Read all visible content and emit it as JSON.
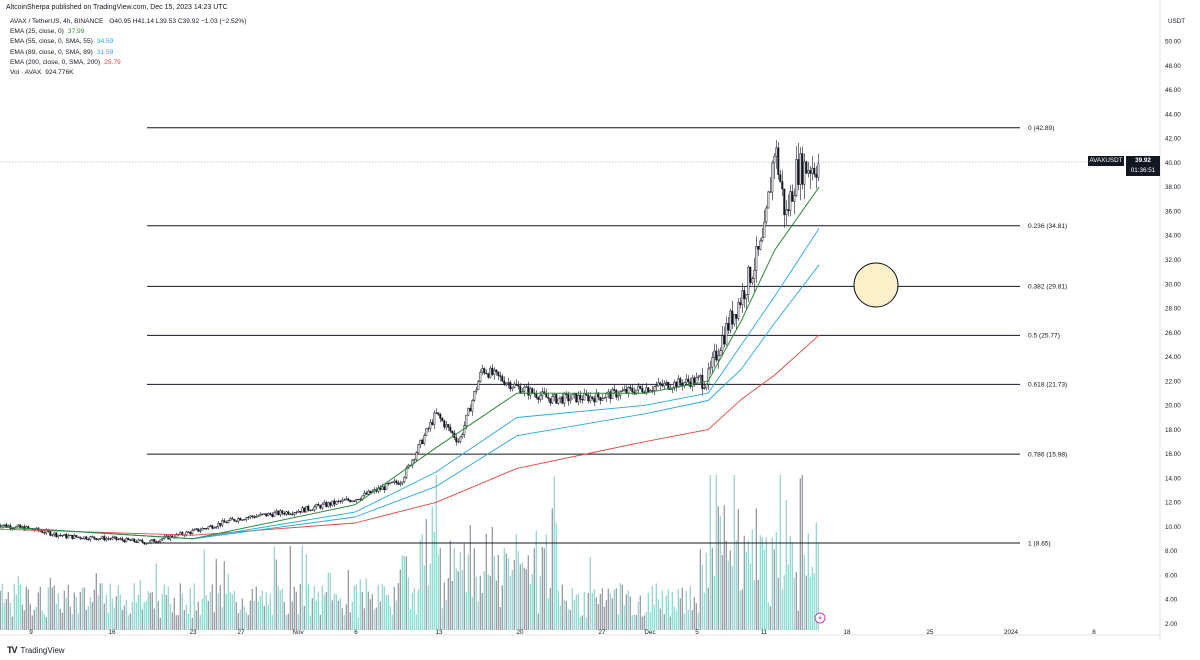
{
  "header": {
    "publisher": "AltcoinSherpa published on TradingView.com, Dec 15, 2023 14:23 UTC"
  },
  "legend": {
    "symbol": "AVAX / TetherUS, 4h, BINANCE",
    "ohlc": "O40.95 H41.14 L39.53 C39.92 −1.03 (−2.52%)",
    "indicators": [
      {
        "label": "EMA (25, close, 0)",
        "value": "37.99",
        "color": "#2e8b3a"
      },
      {
        "label": "EMA (55, close, 0, SMA, 55)",
        "value": "34.59",
        "color": "#26a9e0"
      },
      {
        "label": "EMA (89, close, 0, SMA, 89)",
        "value": "31.59",
        "color": "#26a9e0"
      },
      {
        "label": "EMA (200, close, 0, SMA, 200)",
        "value": "25.79",
        "color": "#e8453c"
      },
      {
        "label": "Vol · AVAX",
        "value": "924.776K",
        "color": "#131722"
      }
    ]
  },
  "axis": {
    "unit": "USDT",
    "y_ticks": [
      "50.00",
      "48.00",
      "46.00",
      "44.00",
      "42.00",
      "40.00",
      "38.00",
      "36.00",
      "34.00",
      "32.00",
      "30.00",
      "28.00",
      "26.00",
      "24.00",
      "22.00",
      "20.00",
      "18.00",
      "16.00",
      "14.00",
      "12.00",
      "10.00",
      "8.00",
      "6.00",
      "4.00",
      "2.00"
    ],
    "x_ticks": [
      "9",
      "16",
      "23",
      "27",
      "Nov",
      "6",
      "13",
      "20",
      "27",
      "Dec",
      "5",
      "11",
      "18",
      "25",
      "2024",
      "8"
    ]
  },
  "current_price": {
    "symbol": "AVAXUSDT",
    "price": "39.92",
    "countdown": "01:36:51"
  },
  "footer": {
    "brand": "TradingView"
  },
  "chart_data": {
    "type": "candlestick",
    "ylim": [
      2,
      50
    ],
    "fib_levels": [
      {
        "label": "0 (42.89)",
        "value": 42.89
      },
      {
        "label": "0.236 (34.81)",
        "value": 34.81
      },
      {
        "label": "0.382 (29.81)",
        "value": 29.81
      },
      {
        "label": "0.5 (25.77)",
        "value": 25.77
      },
      {
        "label": "0.618 (21.73)",
        "value": 21.73
      },
      {
        "label": "0.786 (15.98)",
        "value": 15.98
      },
      {
        "label": "1 (8.65)",
        "value": 8.65
      }
    ],
    "price_path": [
      {
        "date": "Oct 6",
        "close": 10.2
      },
      {
        "date": "Oct 9",
        "close": 9.8
      },
      {
        "date": "Oct 12",
        "close": 9.2
      },
      {
        "date": "Oct 16",
        "close": 9.0
      },
      {
        "date": "Oct 19",
        "close": 8.7
      },
      {
        "date": "Oct 23",
        "close": 9.6
      },
      {
        "date": "Oct 27",
        "close": 10.7
      },
      {
        "date": "Nov 1",
        "close": 11.3
      },
      {
        "date": "Nov 6",
        "close": 12.3
      },
      {
        "date": "Nov 10",
        "close": 13.8
      },
      {
        "date": "Nov 13",
        "close": 19.3
      },
      {
        "date": "Nov 15",
        "close": 17.0
      },
      {
        "date": "Nov 17",
        "close": 23.0
      },
      {
        "date": "Nov 20",
        "close": 21.5
      },
      {
        "date": "Nov 23",
        "close": 20.5
      },
      {
        "date": "Nov 27",
        "close": 20.7
      },
      {
        "date": "Dec 1",
        "close": 21.4
      },
      {
        "date": "Dec 5",
        "close": 22.2
      },
      {
        "date": "Dec 6",
        "close": 25.0
      },
      {
        "date": "Dec 8",
        "close": 29.0
      },
      {
        "date": "Dec 10",
        "close": 33.5
      },
      {
        "date": "Dec 11",
        "close": 41.5
      },
      {
        "date": "Dec 12",
        "close": 35.5
      },
      {
        "date": "Dec 13",
        "close": 39.5
      },
      {
        "date": "Dec 15",
        "close": 39.92
      }
    ],
    "ema_25": [
      {
        "date": "Oct 6",
        "value": 10.0
      },
      {
        "date": "Oct 23",
        "value": 9.0
      },
      {
        "date": "Nov 6",
        "value": 11.8
      },
      {
        "date": "Nov 13",
        "value": 16.5
      },
      {
        "date": "Nov 20",
        "value": 21.0
      },
      {
        "date": "Dec 1",
        "value": 21.0
      },
      {
        "date": "Dec 5",
        "value": 22.0
      },
      {
        "date": "Dec 8",
        "value": 27.0
      },
      {
        "date": "Dec 11",
        "value": 32.8
      },
      {
        "date": "Dec 15",
        "value": 37.99
      }
    ],
    "ema_55": [
      {
        "date": "Oct 6",
        "value": 10.0
      },
      {
        "date": "Oct 23",
        "value": 9.0
      },
      {
        "date": "Nov 6",
        "value": 11.2
      },
      {
        "date": "Nov 13",
        "value": 14.5
      },
      {
        "date": "Nov 20",
        "value": 19.0
      },
      {
        "date": "Dec 1",
        "value": 20.0
      },
      {
        "date": "Dec 5",
        "value": 21.0
      },
      {
        "date": "Dec 8",
        "value": 25.0
      },
      {
        "date": "Dec 11",
        "value": 29.0
      },
      {
        "date": "Dec 15",
        "value": 34.59
      }
    ],
    "ema_89": [
      {
        "date": "Oct 6",
        "value": 10.0
      },
      {
        "date": "Oct 23",
        "value": 9.0
      },
      {
        "date": "Nov 6",
        "value": 10.8
      },
      {
        "date": "Nov 13",
        "value": 13.3
      },
      {
        "date": "Nov 20",
        "value": 17.5
      },
      {
        "date": "Dec 1",
        "value": 19.3
      },
      {
        "date": "Dec 5",
        "value": 20.4
      },
      {
        "date": "Dec 8",
        "value": 23.0
      },
      {
        "date": "Dec 11",
        "value": 26.8
      },
      {
        "date": "Dec 15",
        "value": 31.59
      }
    ],
    "ema_200": [
      {
        "date": "Oct 6",
        "value": 9.8
      },
      {
        "date": "Oct 23",
        "value": 9.3
      },
      {
        "date": "Nov 6",
        "value": 10.3
      },
      {
        "date": "Nov 13",
        "value": 12.0
      },
      {
        "date": "Nov 20",
        "value": 14.8
      },
      {
        "date": "Dec 1",
        "value": 17.0
      },
      {
        "date": "Dec 5",
        "value": 18.0
      },
      {
        "date": "Dec 8",
        "value": 20.5
      },
      {
        "date": "Dec 11",
        "value": 22.5
      },
      {
        "date": "Dec 15",
        "value": 25.79
      }
    ],
    "colors": {
      "ema_25": "#2e8b3a",
      "ema_55": "#26a9e0",
      "ema_89": "#26a9e0",
      "ema_200": "#e8453c",
      "fib": "#131722",
      "volume": "#7fc8c4",
      "circle_fill": "#fbf0c8"
    },
    "annotation": {
      "type": "circle",
      "price": 30
    }
  }
}
